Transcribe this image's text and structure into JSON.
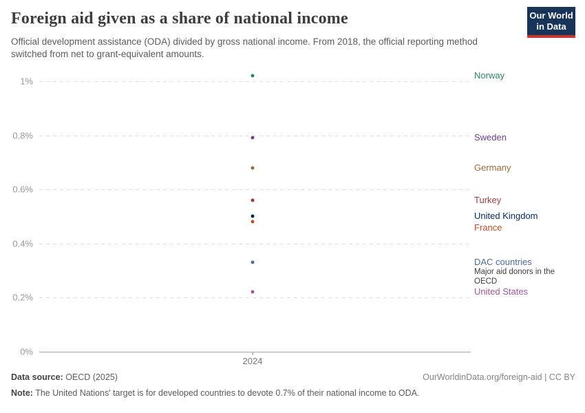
{
  "header": {
    "title": "Foreign aid given as a share of national income",
    "subtitle": "Official development assistance (ODA) divided by gross national income. From 2018, the official reporting method switched from net to grant-equivalent amounts.",
    "logo": {
      "line1": "Our World",
      "line2": "in Data",
      "bg_color": "#183459",
      "accent_color": "#d0342c"
    }
  },
  "chart_data": {
    "type": "scatter",
    "x": [
      2024
    ],
    "x_tick_label": "2024",
    "ylim": [
      0,
      1.07
    ],
    "yticks": [
      {
        "value": 0,
        "label": "0%"
      },
      {
        "value": 0.2,
        "label": "0.2%"
      },
      {
        "value": 0.4,
        "label": "0.4%"
      },
      {
        "value": 0.6,
        "label": "0.6%"
      },
      {
        "value": 0.8,
        "label": "0.8%"
      },
      {
        "value": 1,
        "label": "1%"
      }
    ],
    "grid": "horizontal-dashed",
    "legend_position": "right-entity-labels",
    "unit": "% of gross national income",
    "series": [
      {
        "name": "Norway",
        "value": 1.02,
        "color": "#2c8465"
      },
      {
        "name": "Sweden",
        "value": 0.79,
        "color": "#6d3e91"
      },
      {
        "name": "Germany",
        "value": 0.68,
        "color": "#996d39"
      },
      {
        "name": "Turkey",
        "value": 0.56,
        "color": "#993d3a"
      },
      {
        "name": "United Kingdom",
        "value": 0.5,
        "color": "#00295b"
      },
      {
        "name": "France",
        "value": 0.48,
        "color": "#bc4f29"
      },
      {
        "name": "DAC countries",
        "value": 0.33,
        "color": "#4c6a9c",
        "sublabel": "Major aid donors in the OECD"
      },
      {
        "name": "United States",
        "value": 0.22,
        "color": "#a2559c"
      }
    ]
  },
  "footer": {
    "source_label": "Data source:",
    "source_value": " OECD (2025)",
    "credit": "OurWorldinData.org/foreign-aid | CC BY",
    "note_label": "Note:",
    "note_value": " The United Nations' target is for developed countries to devote 0.7% of their national income to ODA."
  }
}
